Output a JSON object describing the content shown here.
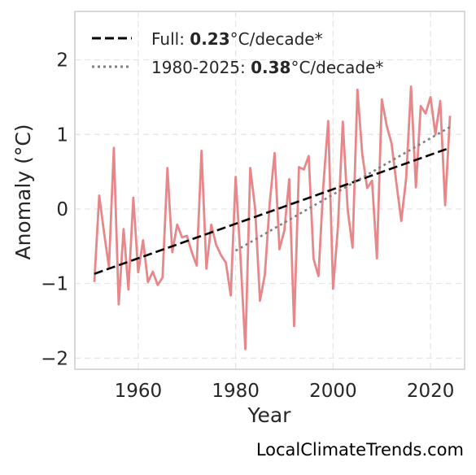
{
  "chart_data": {
    "type": "line",
    "xlabel": "Year",
    "ylabel": "Anomaly (°C)",
    "xlim": [
      1947,
      2027
    ],
    "ylim": [
      -2.15,
      2.65
    ],
    "xticks": [
      1960,
      1980,
      2000,
      2020
    ],
    "yticks": [
      -2,
      -1,
      0,
      1,
      2
    ],
    "ytick_labels": [
      "−2",
      "−1",
      "0",
      "1",
      "2"
    ],
    "grid": true,
    "legend_position": "top-left",
    "x": [
      1951,
      1952,
      1953,
      1954,
      1955,
      1956,
      1957,
      1958,
      1959,
      1960,
      1961,
      1962,
      1963,
      1964,
      1965,
      1966,
      1967,
      1968,
      1969,
      1970,
      1971,
      1972,
      1973,
      1974,
      1975,
      1976,
      1977,
      1978,
      1979,
      1980,
      1981,
      1982,
      1983,
      1984,
      1985,
      1986,
      1987,
      1988,
      1989,
      1990,
      1991,
      1992,
      1993,
      1994,
      1995,
      1996,
      1997,
      1998,
      1999,
      2000,
      2001,
      2002,
      2003,
      2004,
      2005,
      2006,
      2007,
      2008,
      2009,
      2010,
      2011,
      2012,
      2013,
      2014,
      2015,
      2016,
      2017,
      2018,
      2019,
      2020,
      2021,
      2022,
      2023,
      2024
    ],
    "series": [
      {
        "name": "",
        "color": "#e8878a",
        "style": "solid",
        "values": [
          -0.98,
          0.18,
          -0.32,
          -0.78,
          0.82,
          -1.28,
          -0.27,
          -1.08,
          0.15,
          -0.85,
          -0.42,
          -0.98,
          -0.84,
          -1.02,
          -0.92,
          0.55,
          -0.58,
          -0.21,
          -0.38,
          -0.36,
          -0.58,
          -0.76,
          0.78,
          -0.8,
          -0.21,
          -0.48,
          -0.62,
          -0.72,
          -1.16,
          0.43,
          -0.65,
          -1.88,
          0.55,
          0.01,
          -1.23,
          -0.88,
          0.08,
          0.75,
          -0.54,
          -0.29,
          0.4,
          -1.57,
          0.56,
          0.53,
          0.71,
          -0.67,
          -0.9,
          0.31,
          1.18,
          -1.07,
          -0.24,
          1.17,
          -0.01,
          -0.52,
          1.6,
          0.73,
          0.28,
          0.38,
          -0.66,
          1.47,
          1.12,
          0.88,
          0.35,
          -0.16,
          0.41,
          1.64,
          0.29,
          1.38,
          1.28,
          1.5,
          1.0,
          1.45,
          0.05,
          1.25
        ]
      },
      {
        "name": "Full",
        "color": "#000000",
        "style": "dashed",
        "x": [
          1951,
          2024
        ],
        "values": [
          -0.87,
          0.82
        ]
      },
      {
        "name": "1980-2025",
        "color": "#808080",
        "style": "dotted",
        "x": [
          1980,
          2024
        ],
        "values": [
          -0.56,
          1.1
        ]
      }
    ],
    "legend": [
      {
        "prefix": "Full: ",
        "value": "0.23",
        "suffix": "°C/decade*"
      },
      {
        "prefix": "1980-2025: ",
        "value": "0.38",
        "suffix": "°C/decade*"
      }
    ]
  },
  "credit": "LocalClimateTrends.com"
}
